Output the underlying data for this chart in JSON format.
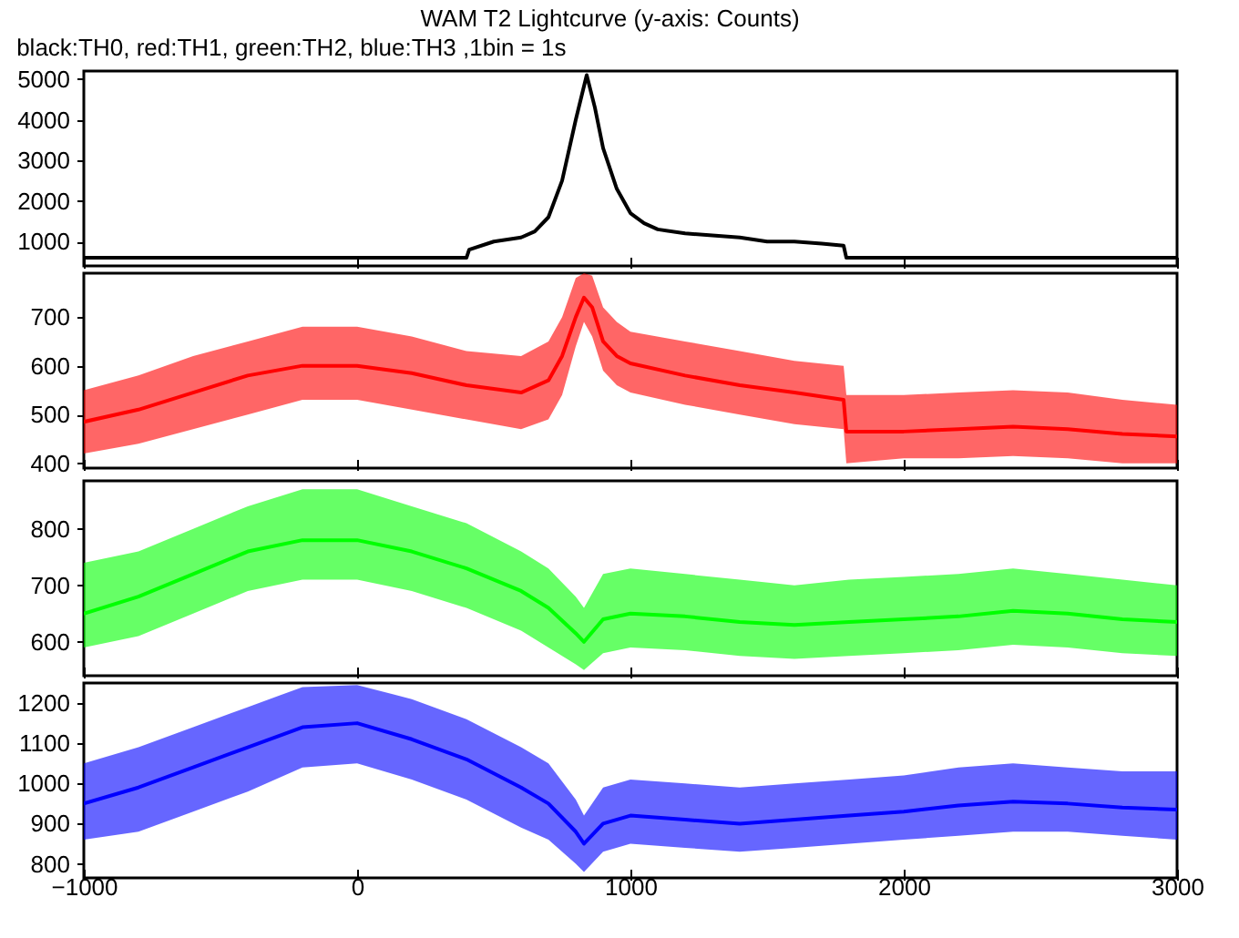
{
  "chart_data": [
    {
      "type": "line",
      "title": "WAM T2 Lightcurve (y-axis: Counts)",
      "subtitle": "black:TH0, red:TH1, green:TH2, blue:TH3 ,1bin = 1s",
      "xlim": [
        -1000,
        3000
      ],
      "xticks": [
        -1000,
        0,
        1000,
        2000,
        3000
      ],
      "ylim": [
        400,
        5200
      ],
      "yticks": [
        1000,
        2000,
        3000,
        4000,
        5000
      ],
      "tick_labels": "y",
      "series": [
        {
          "color": "#000000",
          "x": [
            -1000,
            -800,
            -600,
            -400,
            -200,
            0,
            200,
            400,
            410,
            500,
            600,
            650,
            700,
            750,
            800,
            840,
            870,
            900,
            950,
            1000,
            1050,
            1100,
            1200,
            1300,
            1400,
            1500,
            1600,
            1700,
            1780,
            1790,
            2000,
            2200,
            2400,
            2600,
            2800,
            3000
          ],
          "values": [
            600,
            600,
            600,
            600,
            600,
            600,
            600,
            600,
            800,
            1000,
            1100,
            1250,
            1600,
            2500,
            4000,
            5100,
            4300,
            3300,
            2300,
            1700,
            1450,
            1300,
            1200,
            1150,
            1100,
            1000,
            1000,
            950,
            900,
            600,
            600,
            600,
            600,
            600,
            600,
            600
          ]
        }
      ]
    },
    {
      "type": "line",
      "xlim": [
        -1000,
        3000
      ],
      "xticks": [
        -1000,
        0,
        1000,
        2000,
        3000
      ],
      "ylim": [
        390,
        790
      ],
      "yticks": [
        400,
        500,
        600,
        700
      ],
      "tick_labels": "y",
      "series": [
        {
          "color": "#ff0000",
          "x": [
            -1000,
            -800,
            -600,
            -400,
            -200,
            0,
            200,
            400,
            600,
            700,
            750,
            800,
            830,
            860,
            900,
            950,
            1000,
            1200,
            1400,
            1600,
            1780,
            1790,
            2000,
            2200,
            2400,
            2600,
            2800,
            3000
          ],
          "values": [
            485,
            510,
            545,
            580,
            600,
            600,
            585,
            560,
            545,
            570,
            620,
            700,
            740,
            720,
            650,
            620,
            605,
            580,
            560,
            545,
            530,
            465,
            465,
            470,
            475,
            470,
            460,
            455
          ],
          "lower": [
            420,
            440,
            470,
            500,
            530,
            530,
            510,
            490,
            470,
            490,
            540,
            640,
            690,
            660,
            590,
            560,
            545,
            520,
            500,
            480,
            470,
            400,
            410,
            410,
            415,
            410,
            400,
            400
          ],
          "upper": [
            550,
            580,
            620,
            650,
            680,
            680,
            660,
            630,
            620,
            650,
            700,
            780,
            790,
            785,
            720,
            690,
            670,
            650,
            630,
            610,
            600,
            540,
            540,
            545,
            550,
            545,
            530,
            520
          ]
        }
      ]
    },
    {
      "type": "line",
      "xlim": [
        -1000,
        3000
      ],
      "xticks": [
        -1000,
        0,
        1000,
        2000,
        3000
      ],
      "ylim": [
        540,
        885
      ],
      "yticks": [
        600,
        700,
        800
      ],
      "tick_labels": "y",
      "series": [
        {
          "color": "#00ff00",
          "x": [
            -1000,
            -800,
            -600,
            -400,
            -200,
            0,
            200,
            400,
            600,
            700,
            800,
            830,
            900,
            1000,
            1200,
            1400,
            1600,
            1800,
            2000,
            2200,
            2400,
            2600,
            2800,
            3000
          ],
          "values": [
            650,
            680,
            720,
            760,
            780,
            780,
            760,
            730,
            690,
            660,
            615,
            600,
            640,
            650,
            645,
            635,
            630,
            635,
            640,
            645,
            655,
            650,
            640,
            635
          ],
          "lower": [
            590,
            610,
            650,
            690,
            710,
            710,
            690,
            660,
            620,
            590,
            560,
            550,
            580,
            590,
            585,
            575,
            570,
            575,
            580,
            585,
            595,
            590,
            580,
            575
          ],
          "upper": [
            740,
            760,
            800,
            840,
            870,
            870,
            840,
            810,
            760,
            730,
            680,
            660,
            720,
            730,
            720,
            710,
            700,
            710,
            715,
            720,
            730,
            720,
            710,
            700
          ]
        }
      ]
    },
    {
      "type": "line",
      "xlim": [
        -1000,
        3000
      ],
      "xticks": [
        -1000,
        0,
        1000,
        2000,
        3000
      ],
      "ylim": [
        765,
        1250
      ],
      "yticks": [
        800,
        900,
        1000,
        1100,
        1200
      ],
      "series": [
        {
          "color": "#0000ff",
          "x": [
            -1000,
            -800,
            -600,
            -400,
            -200,
            0,
            200,
            400,
            600,
            700,
            800,
            830,
            900,
            1000,
            1200,
            1400,
            1600,
            1800,
            2000,
            2200,
            2400,
            2600,
            2800,
            3000
          ],
          "values": [
            950,
            990,
            1040,
            1090,
            1140,
            1150,
            1110,
            1060,
            990,
            950,
            880,
            850,
            900,
            920,
            910,
            900,
            910,
            920,
            930,
            945,
            955,
            950,
            940,
            935
          ],
          "lower": [
            860,
            880,
            930,
            980,
            1040,
            1050,
            1010,
            960,
            890,
            860,
            800,
            780,
            830,
            850,
            840,
            830,
            840,
            850,
            860,
            870,
            880,
            880,
            870,
            860
          ],
          "upper": [
            1050,
            1090,
            1140,
            1190,
            1240,
            1245,
            1210,
            1160,
            1090,
            1050,
            960,
            920,
            990,
            1010,
            1000,
            990,
            1000,
            1010,
            1020,
            1040,
            1050,
            1040,
            1030,
            1030
          ]
        }
      ]
    }
  ]
}
